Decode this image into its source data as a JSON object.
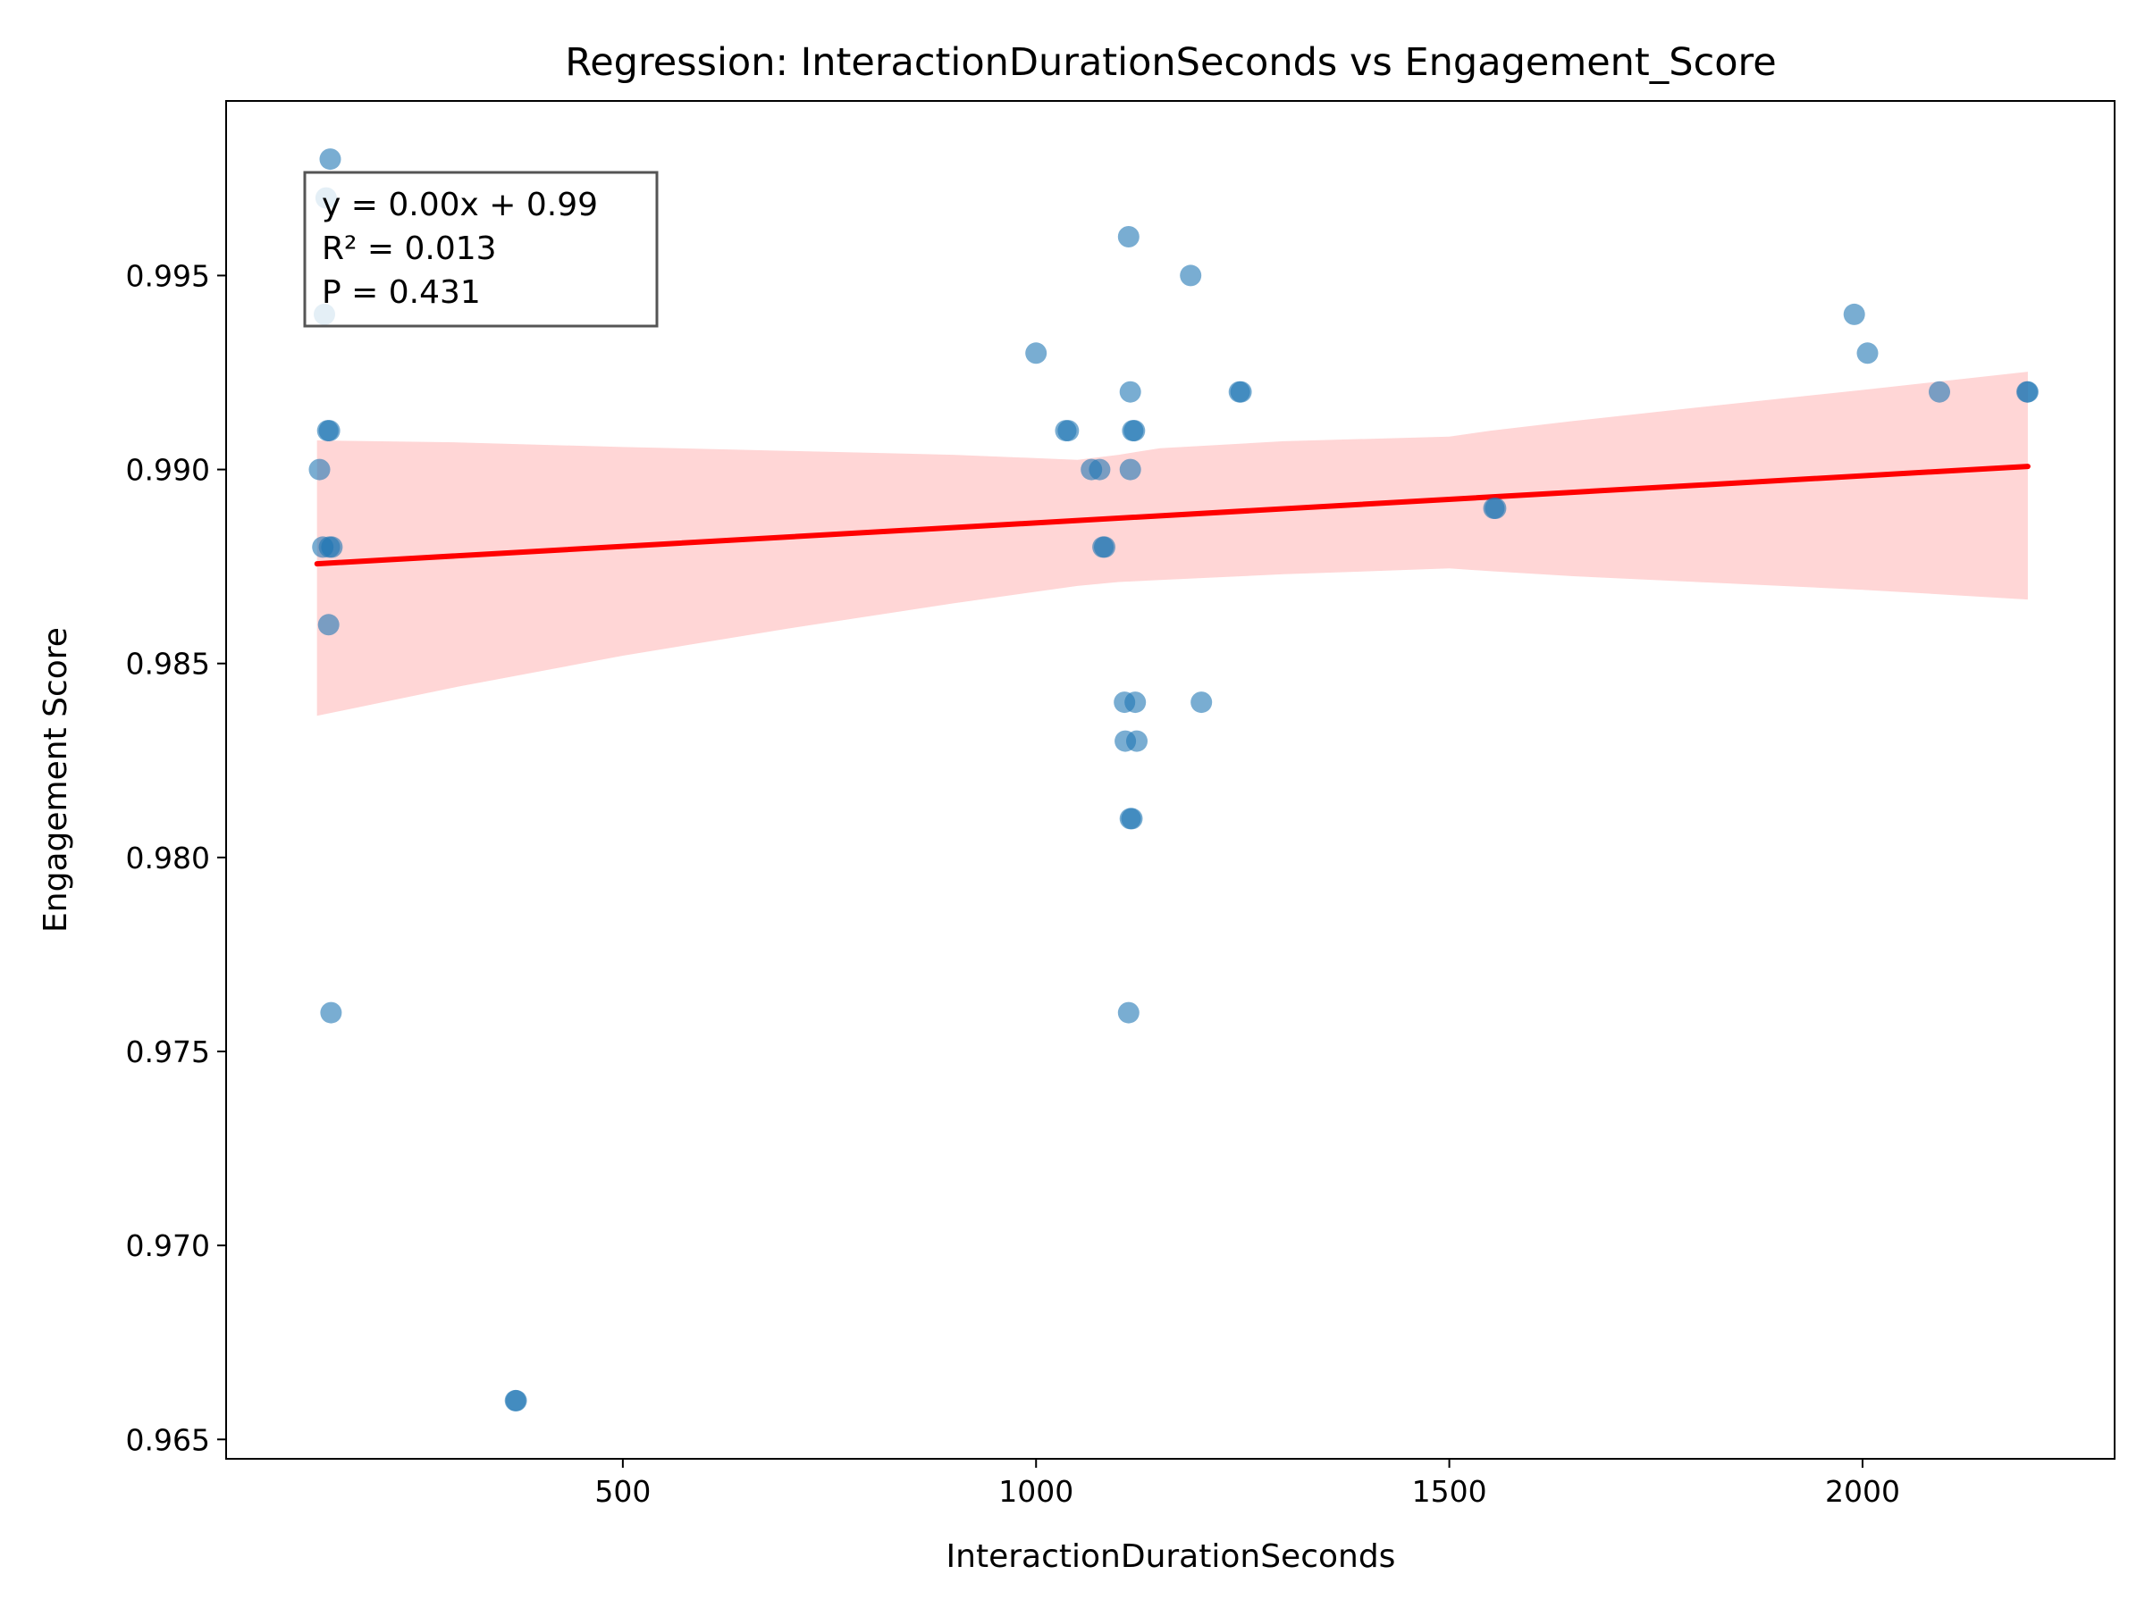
{
  "chart_data": {
    "type": "scatter",
    "title": "Regression: InteractionDurationSeconds vs Engagement_Score",
    "xlabel": "InteractionDurationSeconds",
    "ylabel": "Engagement Score",
    "xlim": [
      20,
      2305
    ],
    "ylim": [
      0.9645,
      0.9995
    ],
    "xticks": [
      500,
      1000,
      1500,
      2000
    ],
    "yticks": [
      0.965,
      0.97,
      0.975,
      0.98,
      0.985,
      0.99,
      0.995
    ],
    "ytick_labels": [
      "0.965",
      "0.970",
      "0.975",
      "0.980",
      "0.985",
      "0.990",
      "0.995"
    ],
    "grid": false,
    "point_color": "#1f77b4",
    "line_color": "#ff0000",
    "band_color": "#ffd6d6",
    "points": [
      {
        "x": 133,
        "y": 0.99
      },
      {
        "x": 137,
        "y": 0.988
      },
      {
        "x": 139,
        "y": 0.994
      },
      {
        "x": 141,
        "y": 0.997
      },
      {
        "x": 143,
        "y": 0.991
      },
      {
        "x": 145,
        "y": 0.991
      },
      {
        "x": 144,
        "y": 0.986
      },
      {
        "x": 145,
        "y": 0.988
      },
      {
        "x": 146,
        "y": 0.998
      },
      {
        "x": 147,
        "y": 0.976
      },
      {
        "x": 148,
        "y": 0.988
      },
      {
        "x": 370,
        "y": 0.966
      },
      {
        "x": 371,
        "y": 0.966
      },
      {
        "x": 1000,
        "y": 0.993
      },
      {
        "x": 1036,
        "y": 0.991
      },
      {
        "x": 1039,
        "y": 0.991
      },
      {
        "x": 1067,
        "y": 0.99
      },
      {
        "x": 1077,
        "y": 0.99
      },
      {
        "x": 1081,
        "y": 0.988
      },
      {
        "x": 1083,
        "y": 0.988
      },
      {
        "x": 1107,
        "y": 0.984
      },
      {
        "x": 1108,
        "y": 0.983
      },
      {
        "x": 1112,
        "y": 0.996
      },
      {
        "x": 1112,
        "y": 0.976
      },
      {
        "x": 1114,
        "y": 0.981
      },
      {
        "x": 1116,
        "y": 0.981
      },
      {
        "x": 1114,
        "y": 0.992
      },
      {
        "x": 1114,
        "y": 0.99
      },
      {
        "x": 1117,
        "y": 0.991
      },
      {
        "x": 1119,
        "y": 0.991
      },
      {
        "x": 1120,
        "y": 0.984
      },
      {
        "x": 1122,
        "y": 0.983
      },
      {
        "x": 1187,
        "y": 0.995
      },
      {
        "x": 1200,
        "y": 0.984
      },
      {
        "x": 1246,
        "y": 0.992
      },
      {
        "x": 1248,
        "y": 0.992
      },
      {
        "x": 1554,
        "y": 0.989
      },
      {
        "x": 1556,
        "y": 0.989
      },
      {
        "x": 1990,
        "y": 0.994
      },
      {
        "x": 2006,
        "y": 0.993
      },
      {
        "x": 2093,
        "y": 0.992
      },
      {
        "x": 2199,
        "y": 0.992
      },
      {
        "x": 2200,
        "y": 0.992
      }
    ],
    "regression_line": {
      "x": [
        130,
        2200
      ],
      "y": [
        0.98757,
        0.99008
      ]
    },
    "confidence_band": {
      "x": [
        130,
        300,
        500,
        700,
        900,
        1050,
        1100,
        1150,
        1300,
        1500,
        1550,
        1650,
        1800,
        2000,
        2200
      ],
      "upper": [
        0.99075,
        0.9907,
        0.99058,
        0.99048,
        0.99038,
        0.99025,
        0.99038,
        0.99055,
        0.99073,
        0.99085,
        0.991,
        0.99125,
        0.9916,
        0.99205,
        0.99252
      ],
      "lower": [
        0.98365,
        0.9844,
        0.9852,
        0.9859,
        0.98655,
        0.987,
        0.9871,
        0.98715,
        0.9873,
        0.98745,
        0.98738,
        0.98725,
        0.9871,
        0.9869,
        0.98665
      ]
    },
    "stats": [
      "y = 0.00x + 0.99",
      "R² = 0.013",
      "P = 0.431"
    ]
  }
}
